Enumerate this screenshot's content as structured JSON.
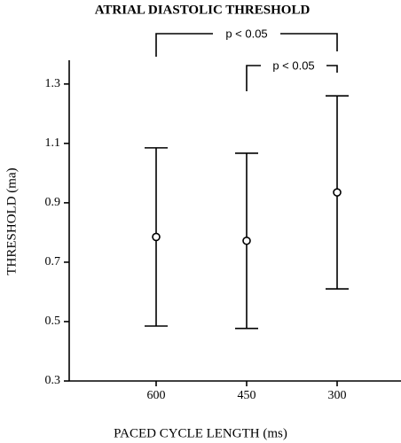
{
  "chart_data": {
    "type": "errorbar",
    "title": "ATRIAL DIASTOLIC THRESHOLD",
    "x_label": "PACED CYCLE LENGTH  (ms)",
    "y_label": "THRESHOLD  (ma)",
    "categories": [
      "600",
      "450",
      "300"
    ],
    "series": [
      {
        "values": [
          0.785,
          0.772,
          0.935
        ],
        "errors": [
          0.3,
          0.295,
          0.325
        ],
        "color": "#000000"
      }
    ],
    "ylim": [
      0.3,
      1.38
    ],
    "yticks": [
      0.3,
      0.5,
      0.7,
      0.9,
      1.1,
      1.3
    ],
    "annotations": [
      "p < 0.05",
      "p < 0.05"
    ]
  }
}
